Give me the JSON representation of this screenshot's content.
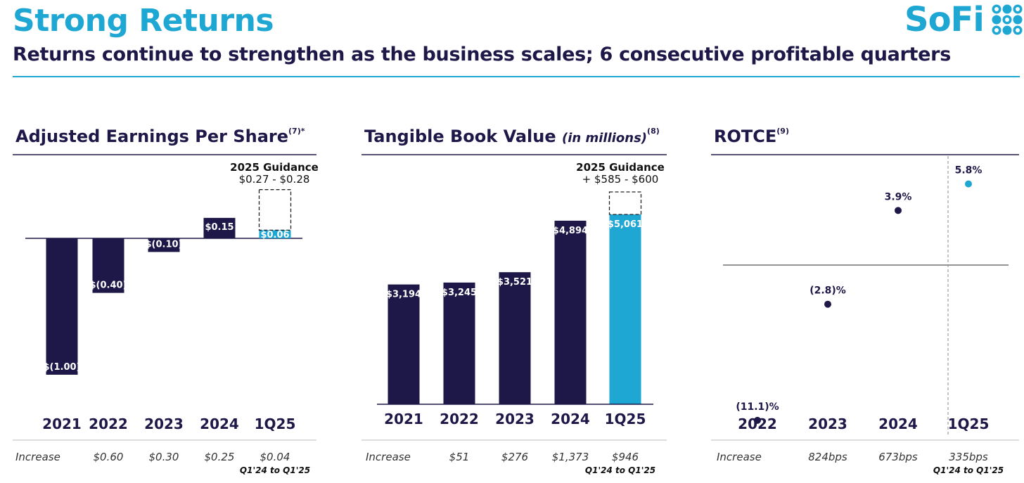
{
  "header": {
    "title": "Strong Returns",
    "subtitle": "Returns continue to strengthen as the business scales; 6 consecutive profitable quarters",
    "logo_text": "SoFi"
  },
  "colors": {
    "navy": "#1e1848",
    "accent": "#1ea7d2",
    "rule": "#1ea7d2",
    "grey": "#bbbbbb"
  },
  "chart_data": [
    {
      "type": "bar",
      "title": "Adjusted Earnings Per Share",
      "title_sup": "(7)*",
      "categories": [
        "2021",
        "2022",
        "2023",
        "2024",
        "1Q25"
      ],
      "values": [
        -1.0,
        -0.4,
        -0.1,
        0.15,
        0.06
      ],
      "labels": [
        "$(1.00)",
        "$(0.40)",
        "$(0.10)",
        "$0.15",
        "$0.06"
      ],
      "highlight_index": 4,
      "guidance": {
        "title": "2025 Guidance",
        "text": "$0.27 - $0.28",
        "low": 0.27,
        "high": 0.28
      },
      "increase_label": "Increase",
      "increase": [
        "",
        "$0.60",
        "$0.30",
        "$0.25",
        "$0.04"
      ],
      "increase_note": "Q1'24 to Q1'25",
      "ylim": [
        -1.0,
        0.28
      ]
    },
    {
      "type": "bar",
      "title": "Tangible Book Value",
      "title_italic": "(in millions)",
      "title_sup": "(8)",
      "categories": [
        "2021",
        "2022",
        "2023",
        "2024",
        "1Q25"
      ],
      "values": [
        3194,
        3245,
        3521,
        4894,
        5061
      ],
      "labels": [
        "$3,194",
        "$3,245",
        "$3,521",
        "$4,894",
        "$5,061"
      ],
      "highlight_index": 4,
      "guidance": {
        "title": "2025 Guidance",
        "text": "+ $585 - $600",
        "low": 585,
        "high": 600
      },
      "increase_label": "Increase",
      "increase": [
        "$51",
        "$276",
        "$1,373",
        "$946"
      ],
      "increase_note": "Q1'24 to Q1'25",
      "ylim": [
        0,
        5700
      ]
    },
    {
      "type": "scatter",
      "title": "ROTCE",
      "title_sup": "(9)",
      "categories": [
        "2022",
        "2023",
        "2024",
        "1Q25"
      ],
      "values": [
        -11.1,
        -2.8,
        3.9,
        5.8
      ],
      "labels": [
        "(11.1)%",
        "(2.8)%",
        "3.9%",
        "5.8%"
      ],
      "highlight_index": 3,
      "increase_label": "Increase",
      "increase": [
        "824bps",
        "673bps",
        "335bps"
      ],
      "increase_note": "Q1'24 to Q1'25",
      "ylim": [
        -14,
        8
      ]
    }
  ]
}
